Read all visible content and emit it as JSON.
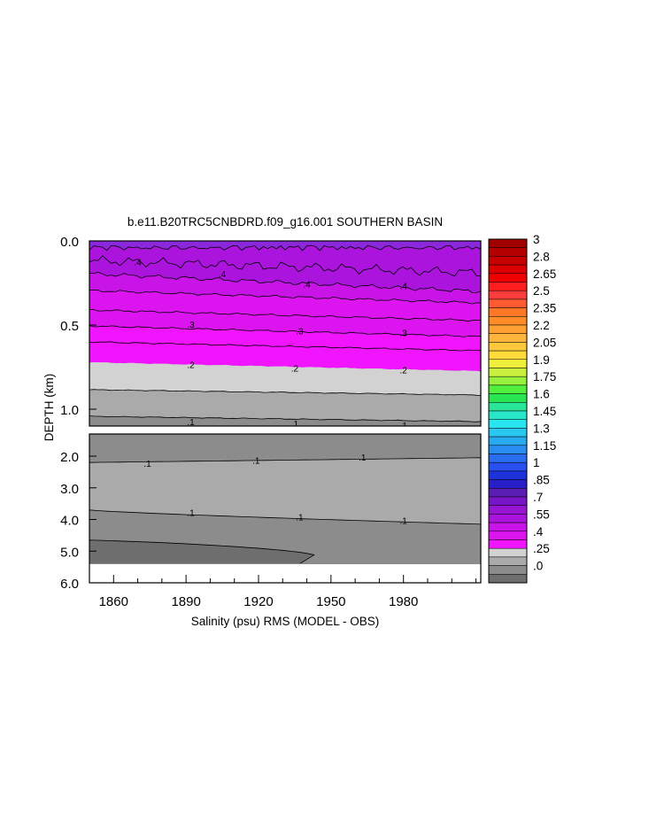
{
  "chart_data": {
    "type": "heatmap",
    "title": "b.e11.B20TRC5CNBDRD.f09_g16.001 SOUTHERN BASIN",
    "xlabel": "Salinity (psu) RMS (MODEL - OBS)",
    "ylabel": "DEPTH (km)",
    "x_ticks": [
      "1860",
      "1890",
      "1920",
      "1950",
      "1980"
    ],
    "x_tick_values": [
      1860,
      1890,
      1920,
      1950,
      1980
    ],
    "xlim": [
      1850,
      2012
    ],
    "upper_panel": {
      "ylim": [
        0.0,
        1.1
      ],
      "y_ticks": [
        "0.0",
        "0.5",
        "1.0"
      ],
      "y_tick_values": [
        0.0,
        0.5,
        1.0
      ],
      "contour_lines": [
        {
          "level": 0.4,
          "label": ".4",
          "depths": [
            0.09,
            0.14,
            0.2,
            0.28
          ]
        },
        {
          "level": 0.3,
          "label": ".3",
          "depths": [
            0.34,
            0.42,
            0.49,
            0.57,
            0.65,
            0.72
          ]
        },
        {
          "level": 0.2,
          "label": ".2",
          "depths": [
            0.74,
            0.93,
            1.0
          ]
        },
        {
          "level": 0.1,
          "label": ".1",
          "depths": [
            1.08
          ]
        }
      ],
      "contour_labels": [
        {
          "text": ".4",
          "x": 1870,
          "y": 0.13
        },
        {
          "text": ".4",
          "x": 1905,
          "y": 0.2
        },
        {
          "text": ".4",
          "x": 1940,
          "y": 0.26
        },
        {
          "text": ".4",
          "x": 1980,
          "y": 0.27
        },
        {
          "text": ".3",
          "x": 1892,
          "y": 0.5
        },
        {
          "text": ".3",
          "x": 1937,
          "y": 0.54
        },
        {
          "text": ".3",
          "x": 1980,
          "y": 0.55
        },
        {
          "text": ".2",
          "x": 1892,
          "y": 0.74
        },
        {
          "text": ".2",
          "x": 1935,
          "y": 0.76
        },
        {
          "text": ".2",
          "x": 1980,
          "y": 0.77
        },
        {
          "text": ".1",
          "x": 1892,
          "y": 1.08
        },
        {
          "text": ".1",
          "x": 1935,
          "y": 1.09
        },
        {
          "text": ".1",
          "x": 1980,
          "y": 1.1
        }
      ]
    },
    "lower_panel": {
      "ylim": [
        1.3,
        6.0
      ],
      "y_ticks": [
        "2.0",
        "3.0",
        "4.0",
        "5.0",
        "6.0"
      ],
      "y_tick_values": [
        2.0,
        3.0,
        4.0,
        5.0,
        6.0
      ],
      "bottom_depth": 5.4,
      "contour_labels": [
        {
          "text": ".1",
          "x": 1874,
          "y": 2.25
        },
        {
          "text": ".1",
          "x": 1919,
          "y": 2.15
        },
        {
          "text": ".1",
          "x": 1963,
          "y": 2.05
        },
        {
          "text": ".1",
          "x": 1892,
          "y": 3.8
        },
        {
          "text": ".1",
          "x": 1937,
          "y": 3.95
        },
        {
          "text": ".1",
          "x": 1980,
          "y": 4.05
        }
      ]
    },
    "colorbar": {
      "labels": [
        "3",
        "2.8",
        "2.65",
        "2.5",
        "2.35",
        "2.2",
        "2.05",
        "1.9",
        "1.75",
        "1.6",
        "1.45",
        "1.3",
        "1.15",
        "1",
        ".85",
        ".7",
        ".55",
        ".4",
        ".25",
        ".0"
      ],
      "levels": [
        3,
        2.8,
        2.65,
        2.5,
        2.35,
        2.2,
        2.05,
        1.9,
        1.75,
        1.6,
        1.45,
        1.3,
        1.15,
        1,
        0.85,
        0.7,
        0.55,
        0.4,
        0.25,
        0.0
      ],
      "n_boxes": 40,
      "colors_top_to_bottom": [
        "#a00000",
        "#b40000",
        "#c80000",
        "#dc0000",
        "#f00000",
        "#ff1e1e",
        "#ff3c3c",
        "#ff5a32",
        "#ff7828",
        "#ff8c28",
        "#ffa032",
        "#ffb43c",
        "#ffc83c",
        "#ffdc3c",
        "#f0f03c",
        "#c8f03c",
        "#96f03c",
        "#50f03c",
        "#28e650",
        "#28e696",
        "#28e6c8",
        "#28e6f0",
        "#28c8f0",
        "#28aaf0",
        "#288cf0",
        "#286ef0",
        "#2850f0",
        "#1e32dc",
        "#281ec8",
        "#5a1eb4",
        "#7814c8",
        "#9614d2",
        "#aa14dc",
        "#c814e6",
        "#dc14f0",
        "#f014ff",
        "#d2d2d2",
        "#aaaaaa",
        "#8c8c8c",
        "#6e6e6e"
      ]
    },
    "colors": {
      "purple": "#8c28dc",
      "violet": "#aa14dc",
      "magenta_dark": "#c814e6",
      "magenta": "#dc14f0",
      "magenta_light": "#f014ff",
      "gray_light": "#d2d2d2",
      "gray_mid": "#aaaaaa",
      "gray_dark": "#8c8c8c",
      "gray_darker": "#6e6e6e"
    }
  }
}
